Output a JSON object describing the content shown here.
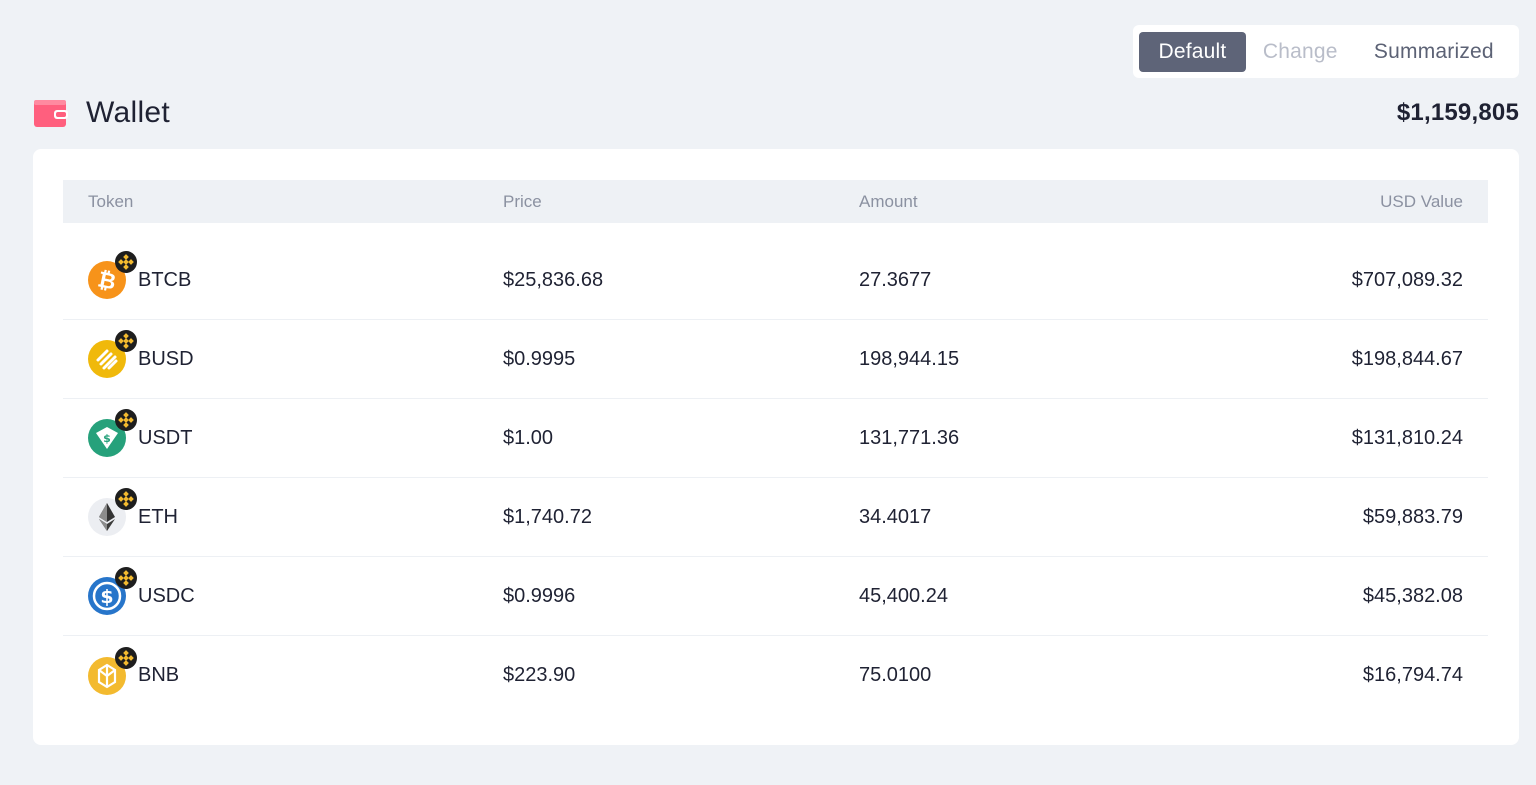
{
  "view_toggle": {
    "options": [
      "Default",
      "Change",
      "Summarized"
    ],
    "active": "Default"
  },
  "wallet": {
    "title": "Wallet",
    "total": "$1,159,805",
    "icon": "wallet-icon"
  },
  "table": {
    "headers": {
      "token": "Token",
      "price": "Price",
      "amount": "Amount",
      "usd_value": "USD Value"
    },
    "rows": [
      {
        "token": "BTCB",
        "price": "$25,836.68",
        "amount": "27.3677",
        "usd_value": "$707,089.32",
        "icon": "btcb-icon"
      },
      {
        "token": "BUSD",
        "price": "$0.9995",
        "amount": "198,944.15",
        "usd_value": "$198,844.67",
        "icon": "busd-icon"
      },
      {
        "token": "USDT",
        "price": "$1.00",
        "amount": "131,771.36",
        "usd_value": "$131,810.24",
        "icon": "usdt-icon"
      },
      {
        "token": "ETH",
        "price": "$1,740.72",
        "amount": "34.4017",
        "usd_value": "$59,883.79",
        "icon": "eth-icon"
      },
      {
        "token": "USDC",
        "price": "$0.9996",
        "amount": "45,400.24",
        "usd_value": "$45,382.08",
        "icon": "usdc-icon"
      },
      {
        "token": "BNB",
        "price": "$223.90",
        "amount": "75.0100",
        "usd_value": "$16,794.74",
        "icon": "bnb-icon"
      }
    ]
  },
  "colors": {
    "background": "#eff2f6",
    "active_toggle": "#5e6478",
    "wallet_icon": "#ff5f7e",
    "btc": "#f7931a",
    "busd": "#f0b90b",
    "usdt": "#26a17b",
    "usdc": "#2775ca",
    "bnb": "#f3ba2f"
  }
}
